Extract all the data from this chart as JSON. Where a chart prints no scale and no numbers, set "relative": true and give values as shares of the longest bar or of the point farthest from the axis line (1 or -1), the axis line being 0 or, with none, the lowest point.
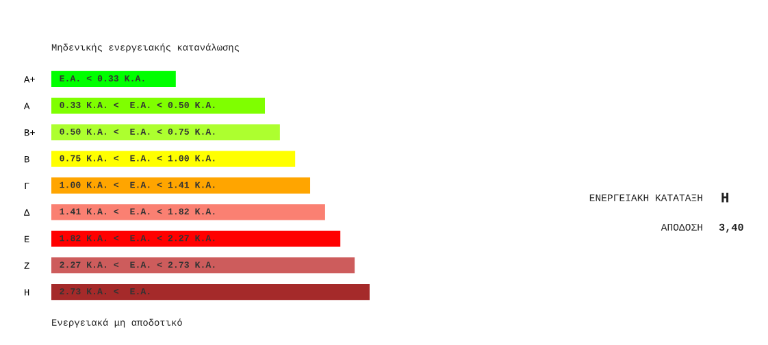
{
  "chart_data": {
    "type": "bar",
    "orientation": "horizontal",
    "relative": true,
    "categories": [
      "Α+",
      "Α",
      "Β+",
      "Β",
      "Γ",
      "Δ",
      "Ε",
      "Ζ",
      "Η"
    ],
    "values": [
      0.391,
      0.671,
      0.718,
      0.766,
      0.813,
      0.86,
      0.908,
      0.953,
      1
    ],
    "colors": [
      "#00ff00",
      "#7fff00",
      "#adff2f",
      "#ffff00",
      "#ffa500",
      "#fa8072",
      "#ff0000",
      "#cd5c5c",
      "#a52a2a"
    ],
    "annotations": [
      "Μηδενικής ενεργειακής κατανάλωσης",
      "Ενεργειακά μη αποδοτικό",
      "ΕΝΕΡΓΕΙΑΚΗ ΚΑΤΑΤΑΞΗ",
      "Η",
      "ΑΠΟΔΟΣΗ",
      "3,40",
      "Ε.Α. < 0.33 Κ.Α.",
      "0.33 Κ.Α. <  Ε.Α. < 0.50 Κ.Α.",
      "0.50 Κ.Α. <  Ε.Α. < 0.75 Κ.Α.",
      "0.75 Κ.Α. <  Ε.Α. < 1.00 Κ.Α.",
      "1.00 Κ.Α. <  Ε.Α. < 1.41 Κ.Α.",
      "1.41 Κ.Α. <  Ε.Α. < 1.82 Κ.Α.",
      "1.82 Κ.Α. <  Ε.Α. < 2.27 Κ.Α.",
      "2.27 Κ.Α. <  Ε.Α. < 2.73 Κ.Α.",
      "2.73 Κ.Α. <  Ε.Α."
    ],
    "grid": false,
    "legend": false
  }
}
